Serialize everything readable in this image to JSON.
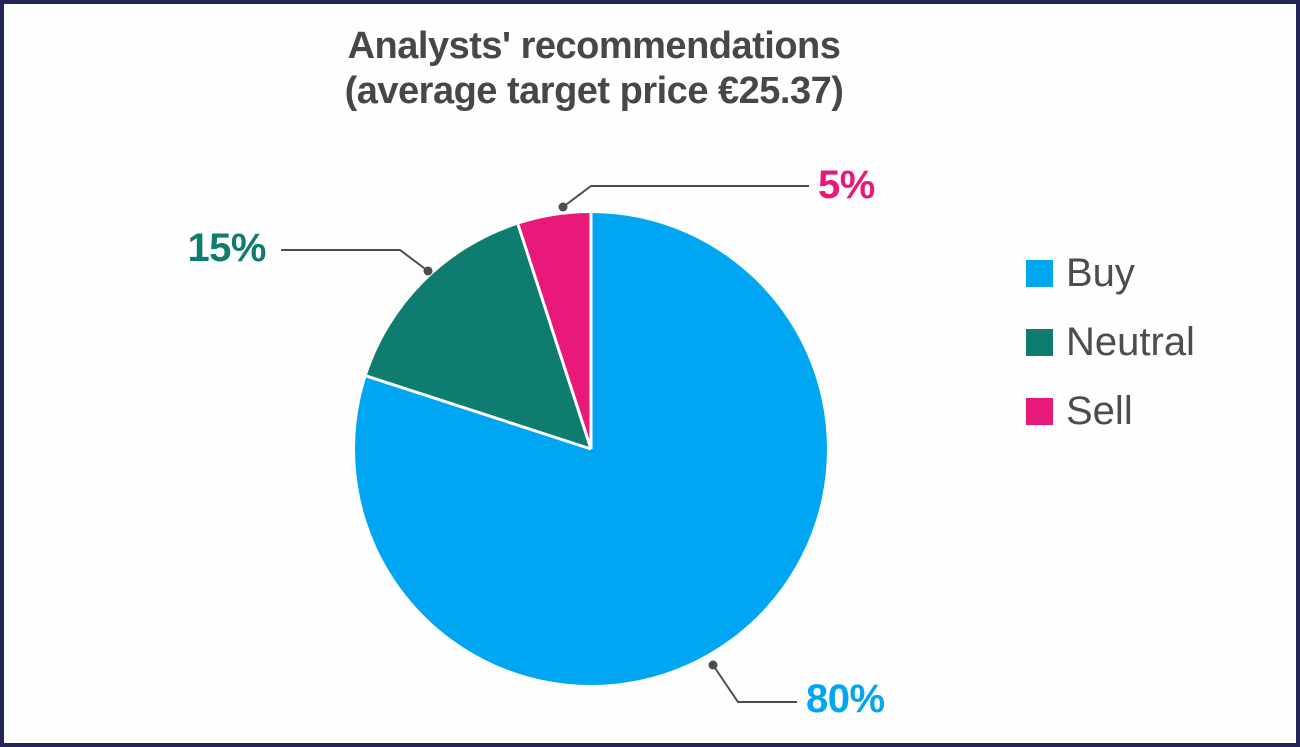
{
  "frame": {
    "border_color": "#232559",
    "background": "#fefefe"
  },
  "title": {
    "line1": "Analysts' recommendations",
    "line2": "(average target price €25.37)",
    "color": "#474747"
  },
  "chart_data": {
    "type": "pie",
    "title": "Analysts' recommendations (average target price €25.37)",
    "categories": [
      "Buy",
      "Neutral",
      "Sell"
    ],
    "values": [
      80,
      15,
      5
    ],
    "unit": "%",
    "slice_labels": [
      "80%",
      "15%",
      "5%"
    ],
    "colors": [
      "#00a6f2",
      "#0e7d70",
      "#e8197b"
    ],
    "start_angle_deg": 0,
    "direction": "clockwise",
    "separator_color": "#ffffff",
    "legend_position": "right"
  },
  "legend": {
    "items": [
      {
        "label": "Buy",
        "color": "#00a6f2"
      },
      {
        "label": "Neutral",
        "color": "#0e7d70"
      },
      {
        "label": "Sell",
        "color": "#e8197b"
      }
    ],
    "text_color": "#4d4d4d"
  },
  "callouts": [
    {
      "label": "15%",
      "category": "Neutral",
      "color": "#0e7d70"
    },
    {
      "label": "5%",
      "category": "Sell",
      "color": "#e8197b"
    },
    {
      "label": "80%",
      "category": "Buy",
      "color": "#00a6f2"
    }
  ],
  "connector_color": "#4d4d4d"
}
